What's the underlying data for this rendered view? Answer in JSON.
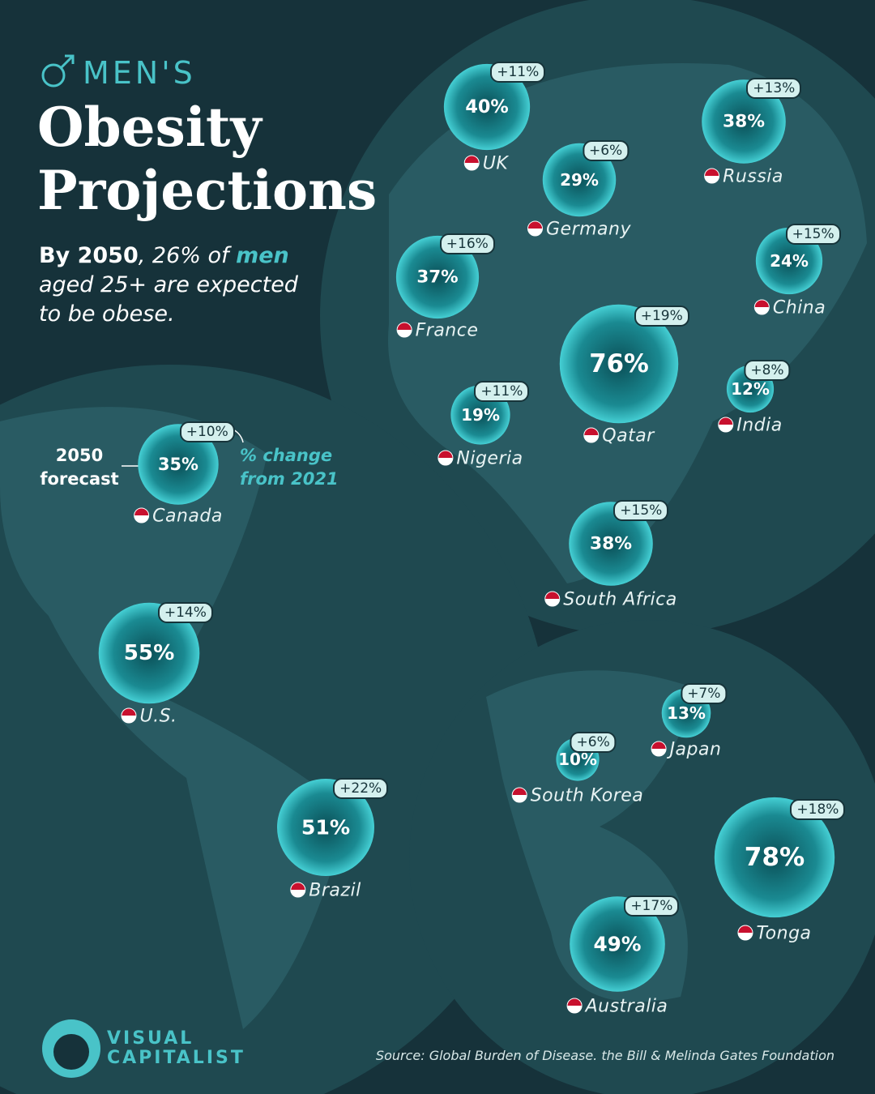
{
  "chart_data": {
    "type": "bubble",
    "header": "MEN'S",
    "title": "Obesity Projections",
    "subtitle": [
      "By 2050",
      ", 26% of ",
      "men",
      " aged 25+ are expected to be obese."
    ],
    "categories": [
      "UK",
      "Russia",
      "Germany",
      "France",
      "China",
      "Qatar",
      "India",
      "Nigeria",
      "Canada",
      "South Africa",
      "U.S.",
      "Japan",
      "South Korea",
      "Brazil",
      "Tonga",
      "Australia"
    ],
    "series": [
      {
        "name": "2050 forecast",
        "color": "#3fc6cc",
        "values": [
          40,
          38,
          29,
          37,
          24,
          76,
          12,
          19,
          35,
          38,
          55,
          13,
          10,
          51,
          78,
          49
        ],
        "value_labels": [
          "40%",
          "38%",
          "29%",
          "37%",
          "24%",
          "76%",
          "12%",
          "19%",
          "35%",
          "38%",
          "55%",
          "13%",
          "10%",
          "51%",
          "78%",
          "49%"
        ]
      },
      {
        "name": "% change from 2021",
        "color": "#d4f0ee",
        "values": [
          11,
          13,
          6,
          16,
          15,
          19,
          8,
          11,
          10,
          15,
          14,
          7,
          6,
          22,
          18,
          17
        ],
        "value_labels": [
          "+11%",
          "+13%",
          "+6%",
          "+16%",
          "+15%",
          "+19%",
          "+8%",
          "+11%",
          "+10%",
          "+15%",
          "+14%",
          "+7%",
          "+6%",
          "+22%",
          "+18%",
          "+17%"
        ]
      }
    ],
    "source": "Source: Global Burden of Disease. the Bill & Melinda Gates Foundation",
    "brand": [
      "VISUAL",
      "CAPITALIST"
    ]
  }
}
